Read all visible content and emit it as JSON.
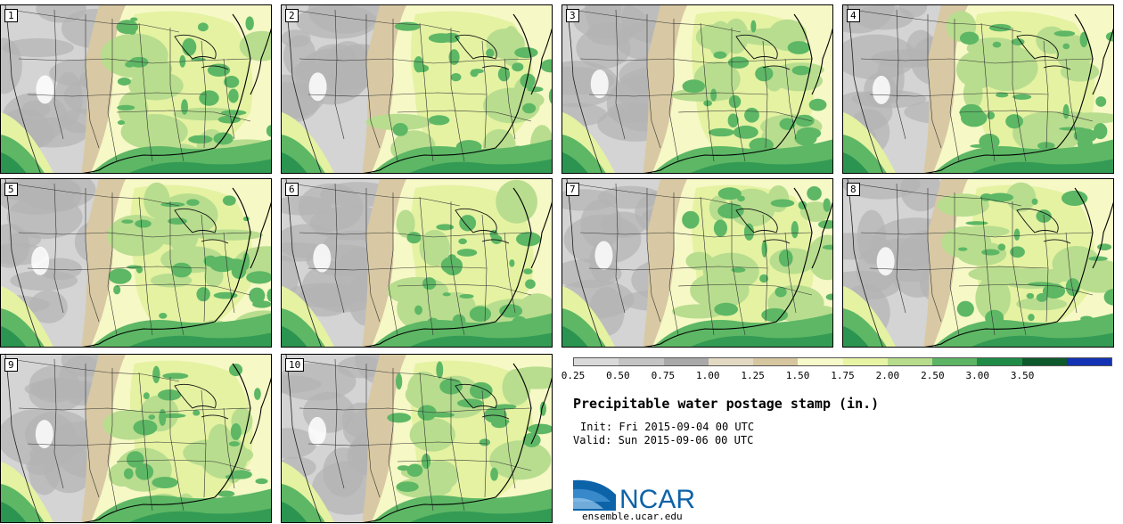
{
  "title": "Precipitable water postage stamp (in.)",
  "init": "Init: Fri 2015-09-04 00 UTC",
  "valid": "Valid: Sun 2015-09-06 00 UTC",
  "logo_text": "NCAR",
  "logo_url": "ensemble.ucar.edu",
  "panels": [
    {
      "label": "1"
    },
    {
      "label": "2"
    },
    {
      "label": "3"
    },
    {
      "label": "4"
    },
    {
      "label": "5"
    },
    {
      "label": "6"
    },
    {
      "label": "7"
    },
    {
      "label": "8"
    },
    {
      "label": "9"
    },
    {
      "label": "10"
    }
  ],
  "legend": {
    "ticks": [
      "0.25",
      "0.50",
      "0.75",
      "1.00",
      "1.25",
      "1.50",
      "1.75",
      "2.00",
      "2.50",
      "3.00",
      "3.50"
    ],
    "colors": [
      "#d9d9d9",
      "#c4c4c4",
      "#a9a9a9",
      "#e2d9c2",
      "#d6c6a0",
      "#f6f9c9",
      "#e6f4a4",
      "#b6dc8c",
      "#5cb464",
      "#1e8c46",
      "#0e5a2c",
      "#1432b4"
    ]
  },
  "map_colors": {
    "gray_light": "#d4d4d4",
    "gray_dark": "#b4b4b4",
    "tan": "#d8c9a4",
    "cream": "#f6f8c6",
    "yellowgreen": "#e4f2a2",
    "lightgreen": "#b8dd8e",
    "green": "#5db765",
    "darkgreen": "#2b9450",
    "white": "#ffffff"
  }
}
